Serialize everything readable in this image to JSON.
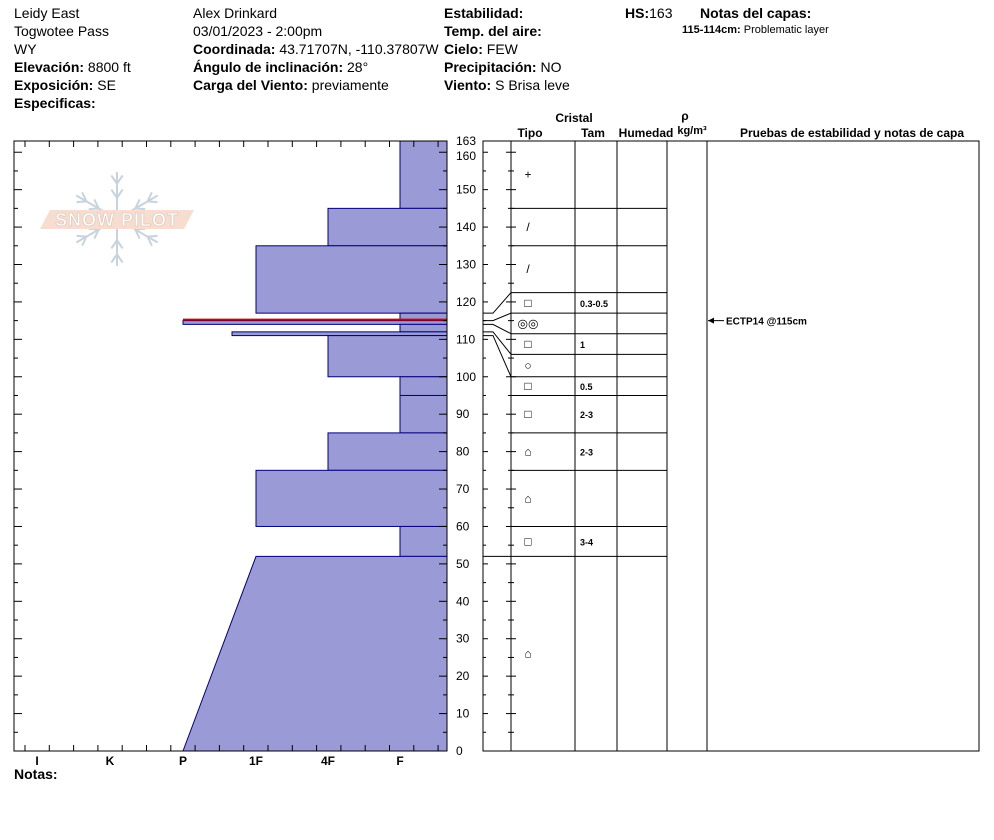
{
  "site": {
    "name": "Leidy East",
    "area": "Togwotee Pass",
    "state": "WY",
    "elevation_label": "Elevación:",
    "elevation": "8800 ft",
    "aspect_label": "Exposición:",
    "aspect": "SE",
    "specifics_label": "Especificas:"
  },
  "observer": {
    "name": "Alex Drinkard",
    "datetime": "03/01/2023 - 2:00pm",
    "coord_label": "Coordinada:",
    "coord": "43.71707N, -110.37807W",
    "slope_label": "Ángulo de inclinación:",
    "slope": "28°",
    "wind_load_label": "Carga del Viento:",
    "wind_load": "previamente"
  },
  "conditions": {
    "stability_label": "Estabilidad:",
    "air_temp_label": "Temp. del aire:",
    "sky_label": "Cielo:",
    "sky": "FEW",
    "precip_label": "Precipitación:",
    "precip": "NO",
    "wind_label": "Viento:",
    "wind": "S Brisa leve"
  },
  "hs": {
    "label": "HS:",
    "value": "163"
  },
  "layer_notes": {
    "title": "Notas del capas:",
    "range": "115-114cm:",
    "text": "Problematic layer"
  },
  "columns": {
    "crystal": "Cristal",
    "type": "Tipo",
    "size": "Tam",
    "moisture": "Humedad",
    "rho": "ρ",
    "density_unit": "kg/m³",
    "tests": "Pruebas de estabilidad y notas de capa"
  },
  "notes_label": "Notas:",
  "logo_text": "SNOW PILOT",
  "colors": {
    "fill": "#9a9ad6",
    "edge": "#00007a",
    "problem_line": "#cc0000"
  },
  "chart_data": {
    "type": "snow-profile",
    "hs": 163,
    "depth_range": [
      0,
      163
    ],
    "depth_ticks": [
      0,
      10,
      20,
      30,
      40,
      50,
      60,
      70,
      80,
      90,
      100,
      110,
      120,
      130,
      140,
      150,
      160,
      163
    ],
    "hardness_scale": [
      "F",
      "4F",
      "1F",
      "P",
      "K",
      "I"
    ],
    "x_axis_labels": [
      "I",
      "K",
      "P",
      "1F",
      "4F",
      "F"
    ],
    "boundaries": [
      163,
      145,
      135,
      117,
      115,
      114,
      112,
      111,
      100,
      95,
      85,
      75,
      60,
      52,
      0
    ],
    "layers": [
      {
        "top": 163,
        "bottom": 145,
        "hardness": "F",
        "grain": "+",
        "size": ""
      },
      {
        "top": 145,
        "bottom": 135,
        "hardness": "4F",
        "grain": "/",
        "size": ""
      },
      {
        "top": 135,
        "bottom": 117,
        "hardness": "1F",
        "grain": "/",
        "size": ""
      },
      {
        "top": 117,
        "bottom": 115,
        "hardness": "F",
        "grain": "□",
        "size": "0.3-0.5"
      },
      {
        "top": 115,
        "bottom": 114,
        "hardness": "P",
        "grain": "◎◎",
        "size": ""
      },
      {
        "top": 114,
        "bottom": 112,
        "hardness": "F",
        "grain": "",
        "size": ""
      },
      {
        "top": 112,
        "bottom": 111,
        "hardness": "1F-",
        "grain": "□",
        "size": "1"
      },
      {
        "top": 111,
        "bottom": 100,
        "hardness": "4F",
        "grain": "○",
        "size": ""
      },
      {
        "top": 100,
        "bottom": 95,
        "hardness": "F",
        "grain": "□",
        "size": "0.5"
      },
      {
        "top": 95,
        "bottom": 85,
        "hardness": "F",
        "grain": "□",
        "size": "2-3"
      },
      {
        "top": 85,
        "bottom": 75,
        "hardness": "4F",
        "grain": "⌂",
        "size": "2-3"
      },
      {
        "top": 75,
        "bottom": 60,
        "hardness": "1F",
        "grain": "⌂",
        "size": ""
      },
      {
        "top": 60,
        "bottom": 52,
        "hardness": "F",
        "grain": "□",
        "size": "3-4"
      },
      {
        "top": 52,
        "bottom": 0,
        "hardness": "1F to P",
        "grain": "⌂",
        "size": ""
      }
    ],
    "tests": [
      {
        "depth": 115,
        "label": "ECTP14 @115cm"
      }
    ]
  }
}
